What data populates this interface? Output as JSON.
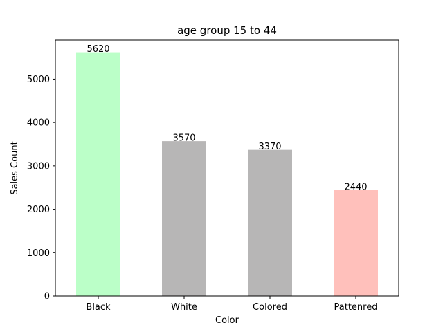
{
  "chart_data": {
    "type": "bar",
    "title": "age group 15 to 44",
    "xlabel": "Color",
    "ylabel": "Sales Count",
    "categories": [
      "Black",
      "White",
      "Colored",
      "Pattenred"
    ],
    "values": [
      5620,
      3570,
      3370,
      2440
    ],
    "data_labels": [
      "5620",
      "3570",
      "3370",
      "2440"
    ],
    "bar_colors": [
      "#bbffc8",
      "#b7b6b6",
      "#b7b6b6",
      "#ffc0bb"
    ],
    "ylim": [
      0,
      5900
    ],
    "yticks": [
      0,
      1000,
      2000,
      3000,
      4000,
      5000
    ],
    "ytick_labels": [
      "0",
      "1000",
      "2000",
      "3000",
      "4000",
      "5000"
    ],
    "grid": false,
    "legend": "none"
  }
}
